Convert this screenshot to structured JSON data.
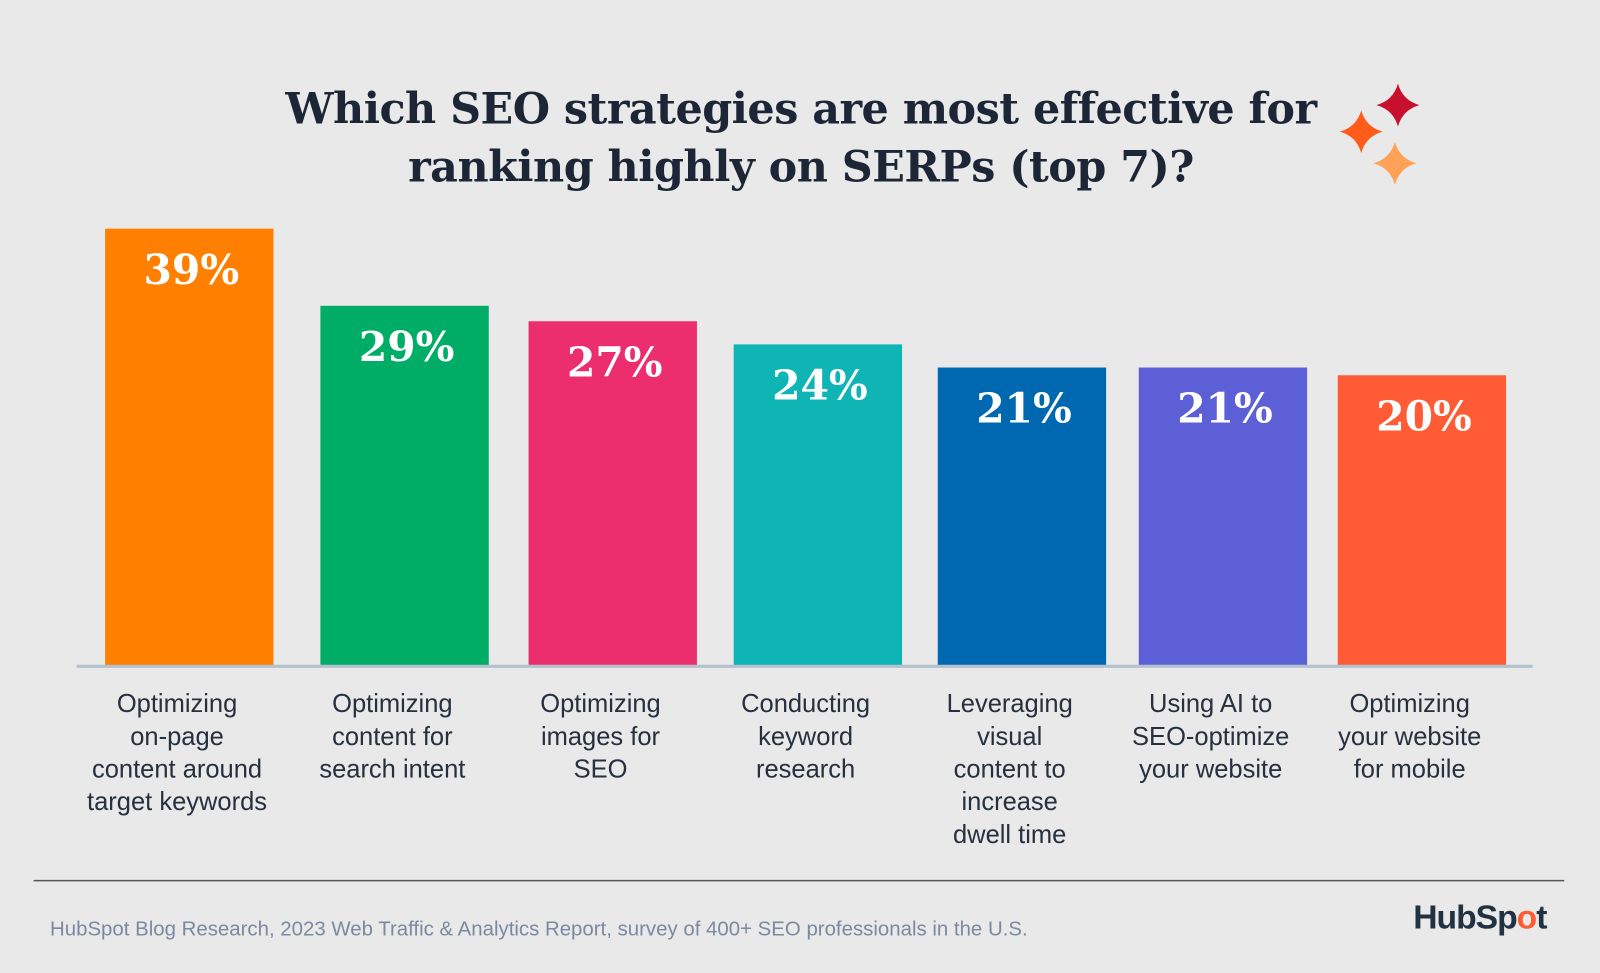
{
  "chart_data": {
    "type": "bar",
    "title": "Which SEO strategies are most effective for ranking highly on SERPs (top 7)?",
    "title_lines": [
      "Which SEO strategies are most effective for",
      "ranking highly on SERPs (top 7)?"
    ],
    "categories": [
      "Optimizing on-page content around target keywords",
      "Optimizing content for search intent",
      "Optimizing images for SEO",
      "Conducting keyword research",
      "Leveraging visual content to increase dwell time",
      "Using AI to SEO-optimize your website",
      "Optimizing your website for mobile"
    ],
    "category_lines": [
      [
        "Optimizing",
        "on-page",
        "content around",
        "target keywords"
      ],
      [
        "Optimizing",
        "content for",
        "search intent"
      ],
      [
        "Optimizing",
        "images for",
        "SEO"
      ],
      [
        "Conducting",
        "keyword",
        "research"
      ],
      [
        "Leveraging",
        "visual",
        "content to",
        "increase",
        "dwell time"
      ],
      [
        "Using AI to",
        "SEO-optimize",
        "your website"
      ],
      [
        "Optimizing",
        "your website",
        "for mobile"
      ]
    ],
    "values": [
      39,
      29,
      27,
      24,
      21,
      21,
      20
    ],
    "data_labels": [
      "39%",
      "29%",
      "27%",
      "24%",
      "21%",
      "21%",
      "20%"
    ],
    "colors": [
      "#ff8000",
      "#00ad66",
      "#ec2d6e",
      "#0fb5b5",
      "#0068b1",
      "#5c5fd6",
      "#ff5c35"
    ],
    "unit": "%",
    "xlabel": "",
    "ylabel": "",
    "grid": false,
    "legend": "none"
  },
  "footer": {
    "source": "HubSpot Blog Research, 2023 Web Traffic & Analytics Report, survey of 400+ SEO professionals in the U.S."
  },
  "brand": {
    "logo_text": "HubSpot",
    "star_colors": [
      "#c8102e",
      "#ff5c1c",
      "#ffa157"
    ]
  }
}
